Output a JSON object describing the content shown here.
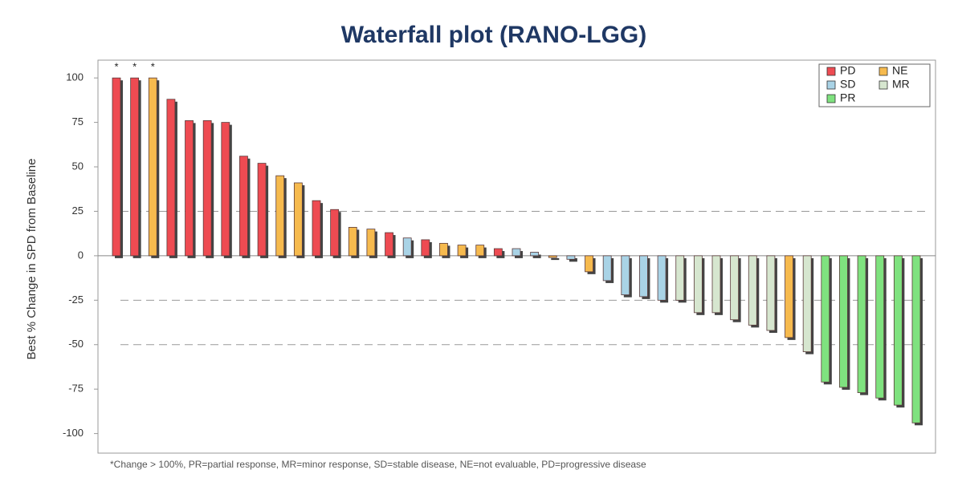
{
  "chart_data": {
    "type": "waterfall",
    "title": "Waterfall plot (RANO-LGG)",
    "y_label": "Best % Change in SPD from Baseline",
    "footnote": "*Change > 100%, PR=partial response, MR=minor response, SD=stable disease, NE=not evaluable, PD=progressive disease",
    "ylim": [
      -111,
      110
    ],
    "yticks": [
      -100,
      -75,
      -50,
      -25,
      0,
      25,
      50,
      75,
      100
    ],
    "reference_lines": [
      25,
      -25,
      -50
    ],
    "annotations": [
      "*",
      "*",
      "*"
    ],
    "legend": "upper right",
    "series": [
      {
        "name": "PD",
        "color": "#ee4b52",
        "values": [
          100,
          100,
          null,
          88,
          76,
          76,
          75,
          56,
          52,
          null,
          null,
          31,
          26,
          null,
          null,
          13,
          null,
          9,
          null,
          null,
          null,
          4,
          null,
          null,
          null,
          null,
          null,
          null,
          null,
          null,
          null,
          null,
          null,
          null,
          null,
          null,
          null,
          null,
          null,
          null,
          null,
          null,
          null,
          null,
          null
        ]
      },
      {
        "name": "NE",
        "color": "#f6ba4e",
        "values": [
          null,
          null,
          100,
          null,
          null,
          null,
          null,
          null,
          null,
          45,
          41,
          null,
          null,
          16,
          15,
          null,
          null,
          null,
          7,
          6,
          6,
          null,
          null,
          null,
          -1,
          null,
          -9,
          null,
          null,
          null,
          null,
          null,
          null,
          null,
          null,
          null,
          null,
          -46,
          null,
          null,
          null,
          null,
          null,
          null,
          null
        ]
      },
      {
        "name": "SD",
        "color": "#a9d3e6",
        "values": [
          null,
          null,
          null,
          null,
          null,
          null,
          null,
          null,
          null,
          null,
          null,
          null,
          null,
          null,
          null,
          null,
          10,
          null,
          null,
          null,
          null,
          null,
          4,
          2,
          null,
          -2,
          null,
          -14,
          -22,
          -23,
          -25,
          null,
          null,
          null,
          null,
          null,
          null,
          null,
          null,
          null,
          null,
          null,
          null,
          null,
          null
        ]
      },
      {
        "name": "MR",
        "color": "#d6e6cf",
        "values": [
          null,
          null,
          null,
          null,
          null,
          null,
          null,
          null,
          null,
          null,
          null,
          null,
          null,
          null,
          null,
          null,
          null,
          null,
          null,
          null,
          null,
          null,
          null,
          null,
          null,
          null,
          null,
          null,
          null,
          null,
          null,
          -25,
          -32,
          -32,
          -36,
          -39,
          -42,
          null,
          -54,
          null,
          null,
          null,
          null,
          null,
          null
        ]
      },
      {
        "name": "PR",
        "color": "#7fe27f",
        "values": [
          null,
          null,
          null,
          null,
          null,
          null,
          null,
          null,
          null,
          null,
          null,
          null,
          null,
          null,
          null,
          null,
          null,
          null,
          null,
          null,
          null,
          null,
          null,
          null,
          null,
          null,
          null,
          null,
          null,
          null,
          null,
          null,
          null,
          null,
          null,
          null,
          null,
          null,
          null,
          -71,
          -74,
          -77,
          -80,
          -84,
          -94
        ]
      }
    ]
  }
}
